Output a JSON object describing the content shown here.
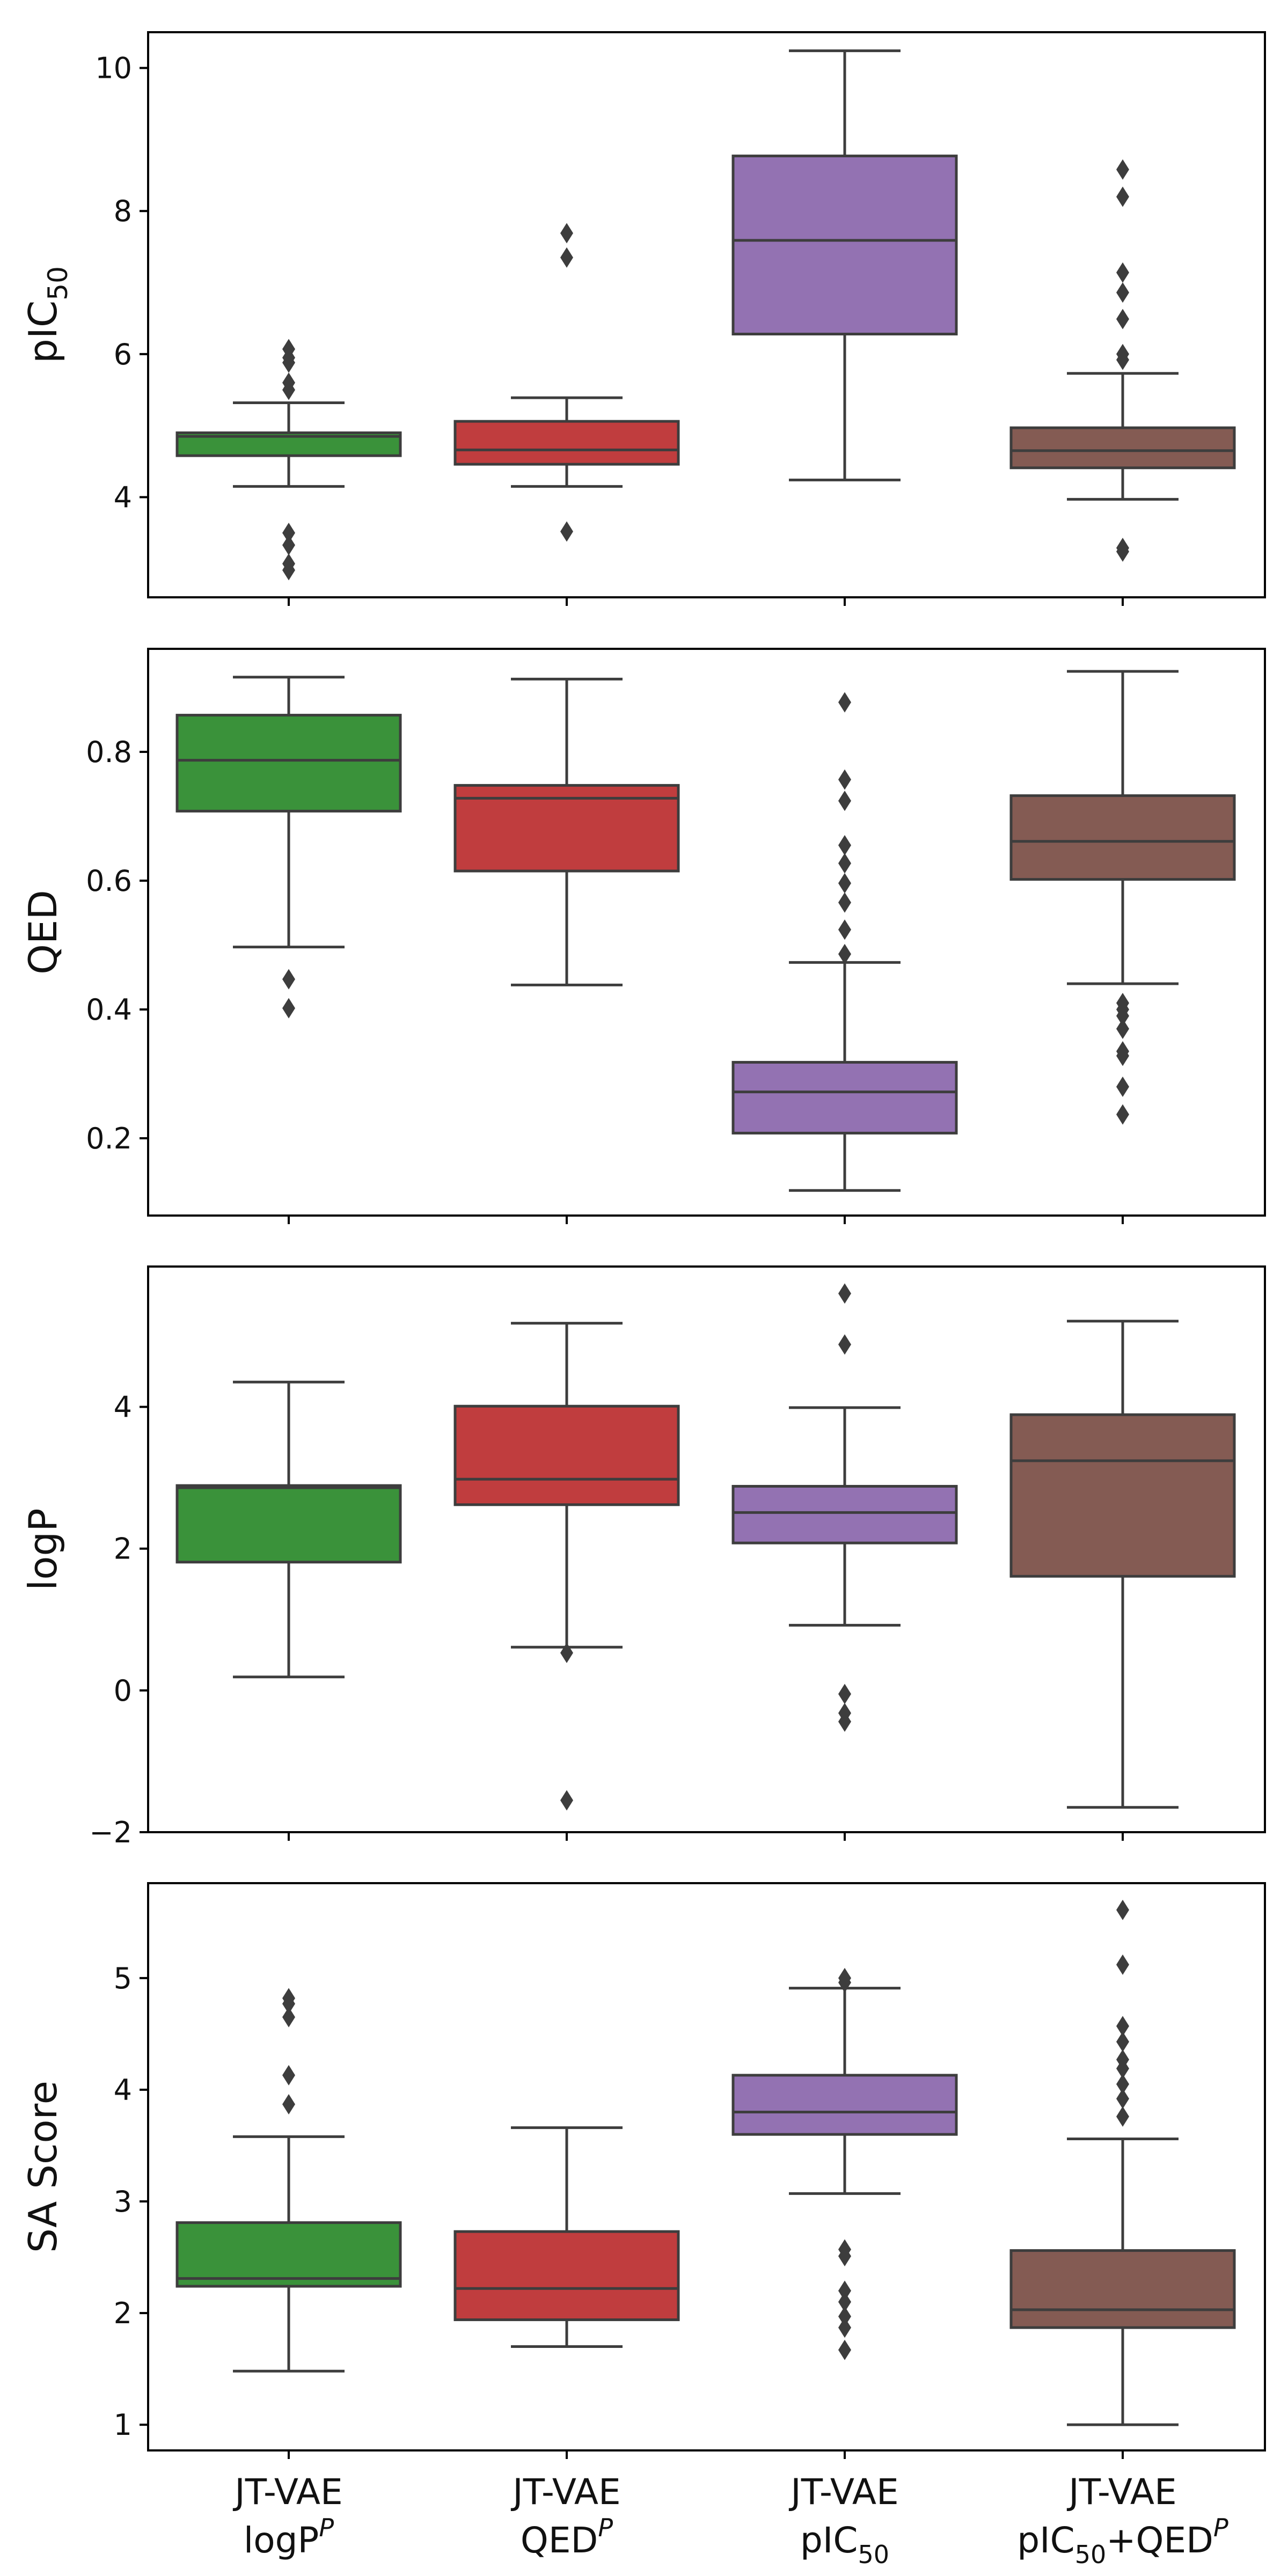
{
  "chart_data": {
    "type": "box",
    "layout": "4 vertically stacked panels sharing x categories",
    "categories": [
      {
        "line1": "JT-VAE",
        "line2_base": "logP",
        "line2_sub": "",
        "line2_sup": "P",
        "line2_tail": ""
      },
      {
        "line1": "JT-VAE",
        "line2_base": "QED",
        "line2_sub": "",
        "line2_sup": "P",
        "line2_tail": ""
      },
      {
        "line1": "JT-VAE",
        "line2_base": "pIC",
        "line2_sub": "50",
        "line2_sup": "",
        "line2_tail": ""
      },
      {
        "line1": "JT-VAE",
        "line2_base": "pIC",
        "line2_sub": "50",
        "line2_sup": "",
        "line2_tail": "+QED",
        "line2_tail_sup": "P"
      }
    ],
    "colors": [
      "#3a923a",
      "#c03d3e",
      "#9372b2",
      "#845b53"
    ],
    "panels": [
      {
        "ylabel_base": "pIC",
        "ylabel_sub": "50",
        "ylim": [
          2.6,
          10.5
        ],
        "yticks": [
          4,
          6,
          8,
          10
        ],
        "ytick_labels": [
          "4",
          "6",
          "8",
          "10"
        ],
        "boxes": [
          {
            "whislo": 4.15,
            "q1": 4.58,
            "med": 4.85,
            "q3": 4.9,
            "whishi": 5.32,
            "fliers": [
              6.07,
              5.95,
              5.88,
              5.6,
              5.5,
              3.5,
              3.33,
              3.07,
              2.98
            ]
          },
          {
            "whislo": 4.15,
            "q1": 4.46,
            "med": 4.66,
            "q3": 5.06,
            "whishi": 5.39,
            "fliers": [
              7.69,
              7.35,
              3.52
            ]
          },
          {
            "whislo": 4.24,
            "q1": 6.28,
            "med": 7.59,
            "q3": 8.77,
            "whishi": 10.24,
            "fliers": []
          },
          {
            "whislo": 3.97,
            "q1": 4.41,
            "med": 4.65,
            "q3": 4.97,
            "whishi": 5.73,
            "fliers": [
              8.58,
              8.2,
              7.14,
              6.86,
              6.49,
              6.0,
              5.92,
              3.29,
              3.24
            ]
          }
        ]
      },
      {
        "ylabel_base": "QED",
        "ylabel_sub": "",
        "ylim": [
          0.08,
          0.96
        ],
        "yticks": [
          0.2,
          0.4,
          0.6,
          0.8
        ],
        "ytick_labels": [
          "0.2",
          "0.4",
          "0.6",
          "0.8"
        ],
        "boxes": [
          {
            "whislo": 0.497,
            "q1": 0.708,
            "med": 0.787,
            "q3": 0.857,
            "whishi": 0.916,
            "fliers": [
              0.447,
              0.402
            ]
          },
          {
            "whislo": 0.438,
            "q1": 0.615,
            "med": 0.728,
            "q3": 0.748,
            "whishi": 0.913,
            "fliers": []
          },
          {
            "whislo": 0.119,
            "q1": 0.208,
            "med": 0.272,
            "q3": 0.318,
            "whishi": 0.473,
            "fliers": [
              0.877,
              0.757,
              0.724,
              0.655,
              0.627,
              0.596,
              0.566,
              0.524,
              0.486
            ]
          },
          {
            "whislo": 0.44,
            "q1": 0.602,
            "med": 0.661,
            "q3": 0.732,
            "whishi": 0.925,
            "fliers": [
              0.41,
              0.4,
              0.39,
              0.37,
              0.335,
              0.328,
              0.28,
              0.237
            ]
          }
        ]
      },
      {
        "ylabel_base": "logP",
        "ylabel_sub": "",
        "ylim": [
          -2.0,
          5.98
        ],
        "yticks": [
          -2,
          0,
          2,
          4
        ],
        "ytick_labels": [
          "−2",
          "0",
          "2",
          "4"
        ],
        "boxes": [
          {
            "whislo": 0.19,
            "q1": 1.81,
            "med": 2.86,
            "q3": 2.89,
            "whishi": 4.35,
            "fliers": []
          },
          {
            "whislo": 0.61,
            "q1": 2.62,
            "med": 2.98,
            "q3": 4.01,
            "whishi": 5.18,
            "fliers": [
              0.53,
              -1.55
            ]
          },
          {
            "whislo": 0.92,
            "q1": 2.08,
            "med": 2.51,
            "q3": 2.88,
            "whishi": 3.99,
            "fliers": [
              5.6,
              4.88,
              -0.05,
              -0.32,
              -0.44
            ]
          },
          {
            "whislo": -1.65,
            "q1": 1.61,
            "med": 3.24,
            "q3": 3.89,
            "whishi": 5.21,
            "fliers": []
          }
        ]
      },
      {
        "ylabel_base": "SA Score",
        "ylabel_sub": "",
        "ylim": [
          0.77,
          5.85
        ],
        "yticks": [
          1,
          2,
          3,
          4,
          5
        ],
        "ytick_labels": [
          "1",
          "2",
          "3",
          "4",
          "5"
        ],
        "boxes": [
          {
            "whislo": 1.48,
            "q1": 2.24,
            "med": 2.31,
            "q3": 2.81,
            "whishi": 3.58,
            "fliers": [
              4.82,
              4.77,
              4.65,
              4.13,
              3.87
            ]
          },
          {
            "whislo": 1.7,
            "q1": 1.94,
            "med": 2.22,
            "q3": 2.73,
            "whishi": 3.66,
            "fliers": []
          },
          {
            "whislo": 3.07,
            "q1": 3.6,
            "med": 3.8,
            "q3": 4.13,
            "whishi": 4.91,
            "fliers": [
              5.0,
              4.96,
              2.57,
              2.51,
              2.2,
              2.1,
              1.97,
              1.87,
              1.67
            ]
          },
          {
            "whislo": 1.0,
            "q1": 1.87,
            "med": 2.03,
            "q3": 2.56,
            "whishi": 3.56,
            "fliers": [
              5.61,
              5.12,
              4.57,
              4.43,
              4.27,
              4.19,
              4.05,
              3.92,
              3.76
            ]
          }
        ]
      }
    ]
  }
}
